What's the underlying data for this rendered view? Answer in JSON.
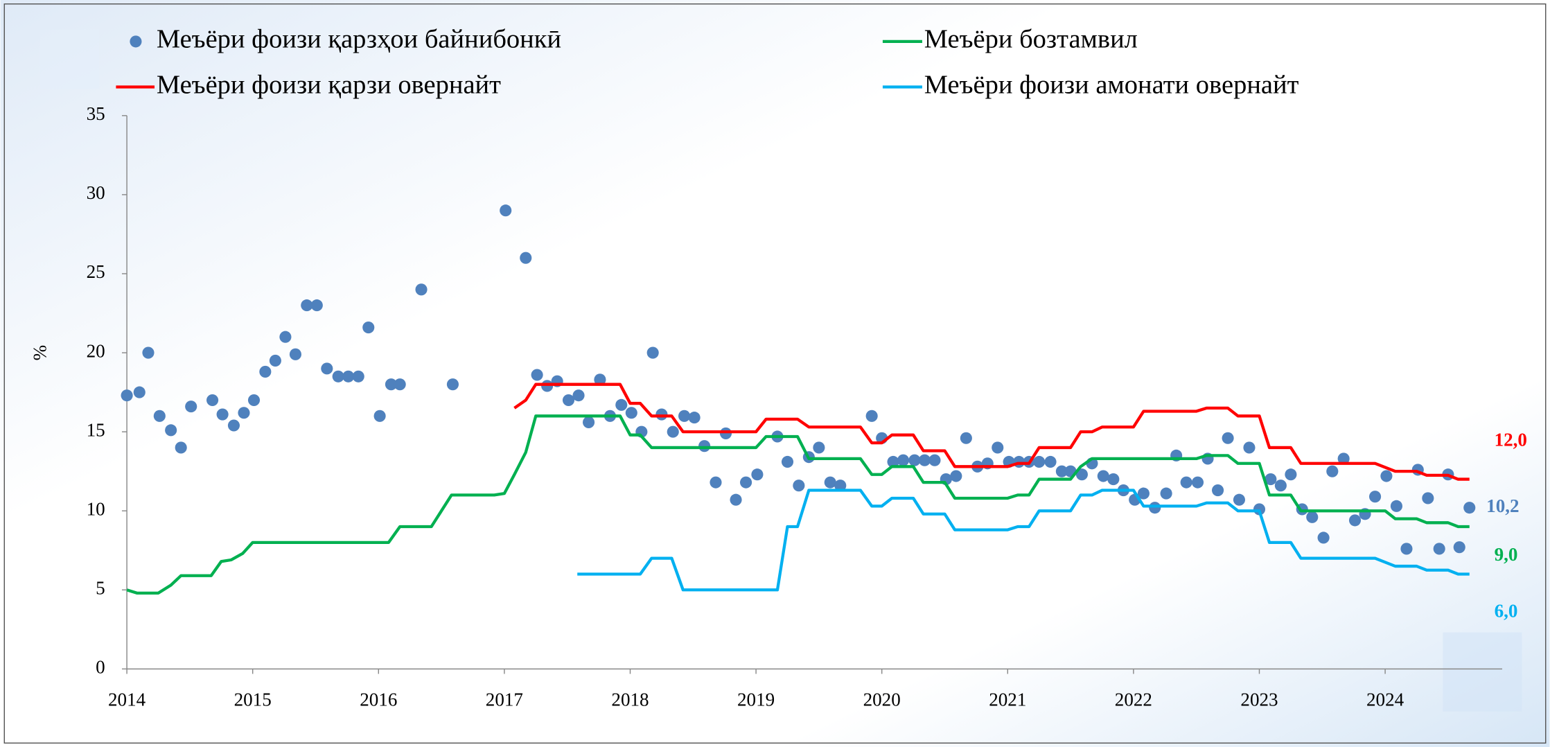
{
  "chart_data": {
    "type": "line",
    "y_label": "%",
    "xlim": [
      2014,
      2024.93
    ],
    "xticks": [
      2014,
      2015,
      2016,
      2017,
      2018,
      2019,
      2020,
      2021,
      2022,
      2023,
      2024
    ],
    "ylim": [
      0,
      35
    ],
    "yticks": [
      0,
      5,
      10,
      15,
      20,
      25,
      30,
      35
    ],
    "series": [
      {
        "name": "Меъёри фоизи  қарзҳои байнибонкӣ",
        "type": "scatter",
        "color": "#4f81bd",
        "end_label": "10,2",
        "x": [
          2014.0,
          2014.1,
          2014.17,
          2014.26,
          2014.35,
          2014.43,
          2014.51,
          2014.68,
          2014.76,
          2014.85,
          2014.93,
          2015.01,
          2015.1,
          2015.18,
          2015.26,
          2015.34,
          2015.43,
          2015.51,
          2015.59,
          2015.68,
          2015.76,
          2015.84,
          2015.92,
          2016.01,
          2016.1,
          2016.17,
          2016.34,
          2016.59,
          2017.01,
          2017.17,
          2017.26,
          2017.34,
          2017.42,
          2017.51,
          2017.59,
          2017.67,
          2017.76,
          2017.84,
          2017.93,
          2018.01,
          2018.09,
          2018.18,
          2018.25,
          2018.34,
          2018.43,
          2018.51,
          2018.59,
          2018.68,
          2018.76,
          2018.84,
          2018.92,
          2019.01,
          2019.17,
          2019.25,
          2019.34,
          2019.42,
          2019.5,
          2019.59,
          2019.67,
          2019.92,
          2020.0,
          2020.09,
          2020.17,
          2020.26,
          2020.34,
          2020.42,
          2020.51,
          2020.59,
          2020.67,
          2020.76,
          2020.84,
          2020.92,
          2021.01,
          2021.09,
          2021.17,
          2021.25,
          2021.34,
          2021.43,
          2021.5,
          2021.59,
          2021.67,
          2021.76,
          2021.84,
          2021.92,
          2022.01,
          2022.08,
          2022.17,
          2022.26,
          2022.34,
          2022.42,
          2022.51,
          2022.59,
          2022.67,
          2022.75,
          2022.84,
          2022.92,
          2023.0,
          2023.09,
          2023.17,
          2023.25,
          2023.34,
          2023.42,
          2023.51,
          2023.58,
          2023.67,
          2023.76,
          2023.84,
          2023.92,
          2024.01,
          2024.09,
          2024.17,
          2024.26,
          2024.34,
          2024.43,
          2024.5,
          2024.59,
          2024.67
        ],
        "values": [
          17.3,
          17.5,
          20,
          16,
          15.1,
          14,
          16.6,
          17,
          16.1,
          15.4,
          16.2,
          17,
          18.8,
          19.5,
          21,
          19.9,
          23,
          23,
          19,
          18.5,
          18.5,
          18.5,
          21.6,
          16,
          18,
          18,
          24,
          18,
          29,
          26,
          18.6,
          17.9,
          18.2,
          17,
          17.3,
          15.6,
          18.3,
          16,
          16.7,
          16.2,
          15,
          20,
          16.1,
          15,
          16,
          15.9,
          14.1,
          11.8,
          14.9,
          10.7,
          11.8,
          12.3,
          14.7,
          13.1,
          11.6,
          13.4,
          14,
          11.8,
          11.6,
          16,
          14.6,
          13.1,
          13.2,
          13.2,
          13.2,
          13.2,
          12,
          12.2,
          14.6,
          12.8,
          13,
          14,
          13.1,
          13.1,
          13.1,
          13.1,
          13.1,
          12.5,
          12.5,
          12.3,
          13,
          12.2,
          12,
          11.3,
          10.7,
          11.1,
          10.2,
          11.1,
          13.5,
          11.8,
          11.8,
          13.3,
          11.3,
          14.6,
          10.7,
          14,
          10.1,
          12,
          11.6,
          12.3,
          10.1,
          9.6,
          8.3,
          12.5,
          13.3,
          9.4,
          9.8,
          10.9,
          12.2,
          10.3,
          7.6,
          12.6,
          10.8,
          7.6,
          12.3,
          7.7,
          10.2
        ]
      },
      {
        "name": "Меъёри бозтамвил",
        "type": "line",
        "color": "#00b050",
        "end_label": "9,0",
        "x": [
          2014,
          2014.08,
          2014.25,
          2014.35,
          2014.43,
          2014.67,
          2014.75,
          2014.83,
          2014.92,
          2015.0,
          2016.08,
          2016.17,
          2016.42,
          2016.5,
          2016.58,
          2016.92,
          2017.0,
          2017.08,
          2017.17,
          2017.25,
          2017.92,
          2018.0,
          2018.08,
          2018.17,
          2019.0,
          2019.08,
          2019.33,
          2019.42,
          2019.83,
          2019.92,
          2020.0,
          2020.08,
          2020.25,
          2020.33,
          2020.5,
          2020.58,
          2021.0,
          2021.08,
          2021.17,
          2021.25,
          2021.5,
          2021.58,
          2021.67,
          2022.5,
          2022.58,
          2022.75,
          2022.83,
          2023.0,
          2023.08,
          2023.25,
          2023.33,
          2024.0,
          2024.08,
          2024.25,
          2024.33,
          2024.5,
          2024.58,
          2024.67
        ],
        "values": [
          5,
          4.8,
          4.8,
          5.3,
          5.9,
          5.9,
          6.8,
          6.9,
          7.3,
          8,
          8,
          9,
          9,
          10,
          11,
          11,
          11.1,
          12.3,
          13.7,
          16,
          16,
          14.8,
          14.8,
          14,
          14,
          14.7,
          14.7,
          13.3,
          13.3,
          12.3,
          12.3,
          12.8,
          12.8,
          11.8,
          11.8,
          10.8,
          10.8,
          11,
          11,
          12,
          12,
          12.8,
          13.3,
          13.3,
          13.5,
          13.5,
          13,
          13,
          11,
          11,
          10,
          10,
          9.5,
          9.5,
          9.25,
          9.25,
          9,
          9
        ]
      },
      {
        "name": "Меъёри фоизи қарзи овернайт",
        "type": "line",
        "color": "#ff0000",
        "end_label": "12,0",
        "x": [
          2017.08,
          2017.17,
          2017.25,
          2017.92,
          2018.0,
          2018.08,
          2018.17,
          2018.33,
          2018.42,
          2019.0,
          2019.08,
          2019.33,
          2019.42,
          2019.83,
          2019.92,
          2020.0,
          2020.08,
          2020.25,
          2020.33,
          2020.5,
          2020.58,
          2021.0,
          2021.08,
          2021.17,
          2021.25,
          2021.5,
          2021.58,
          2021.67,
          2021.75,
          2022.0,
          2022.08,
          2022.5,
          2022.58,
          2022.75,
          2022.83,
          2023.0,
          2023.08,
          2023.25,
          2023.33,
          2023.92,
          2024.08,
          2024.25,
          2024.33,
          2024.5,
          2024.58,
          2024.67
        ],
        "values": [
          16.5,
          17,
          18,
          18,
          16.8,
          16.8,
          16,
          16,
          15,
          15,
          15.8,
          15.8,
          15.3,
          15.3,
          14.3,
          14.3,
          14.8,
          14.8,
          13.8,
          13.8,
          12.8,
          12.8,
          13,
          13,
          14,
          14,
          15,
          15,
          15.3,
          15.3,
          16.3,
          16.3,
          16.5,
          16.5,
          16,
          16,
          14,
          14,
          13,
          13,
          12.5,
          12.5,
          12.25,
          12.25,
          12,
          12
        ]
      },
      {
        "name": "Меъёри фоизи амонати овернайт",
        "type": "line",
        "color": "#00b0f0",
        "end_label": "6,0",
        "x": [
          2017.58,
          2018.08,
          2018.17,
          2018.33,
          2018.42,
          2019.17,
          2019.25,
          2019.33,
          2019.42,
          2019.83,
          2019.92,
          2020.0,
          2020.08,
          2020.25,
          2020.33,
          2020.5,
          2020.58,
          2021.0,
          2021.08,
          2021.17,
          2021.25,
          2021.5,
          2021.58,
          2021.67,
          2021.75,
          2022.0,
          2022.08,
          2022.5,
          2022.58,
          2022.75,
          2022.83,
          2023.0,
          2023.08,
          2023.25,
          2023.33,
          2023.92,
          2024.08,
          2024.25,
          2024.33,
          2024.5,
          2024.58,
          2024.67
        ],
        "values": [
          6,
          6,
          7,
          7,
          5,
          5,
          9,
          9,
          11.3,
          11.3,
          10.3,
          10.3,
          10.8,
          10.8,
          9.8,
          9.8,
          8.8,
          8.8,
          9,
          9,
          10,
          10,
          11,
          11,
          11.3,
          11.3,
          10.3,
          10.3,
          10.5,
          10.5,
          10,
          10,
          8,
          8,
          7,
          7,
          6.5,
          6.5,
          6.25,
          6.25,
          6,
          6
        ]
      }
    ]
  }
}
